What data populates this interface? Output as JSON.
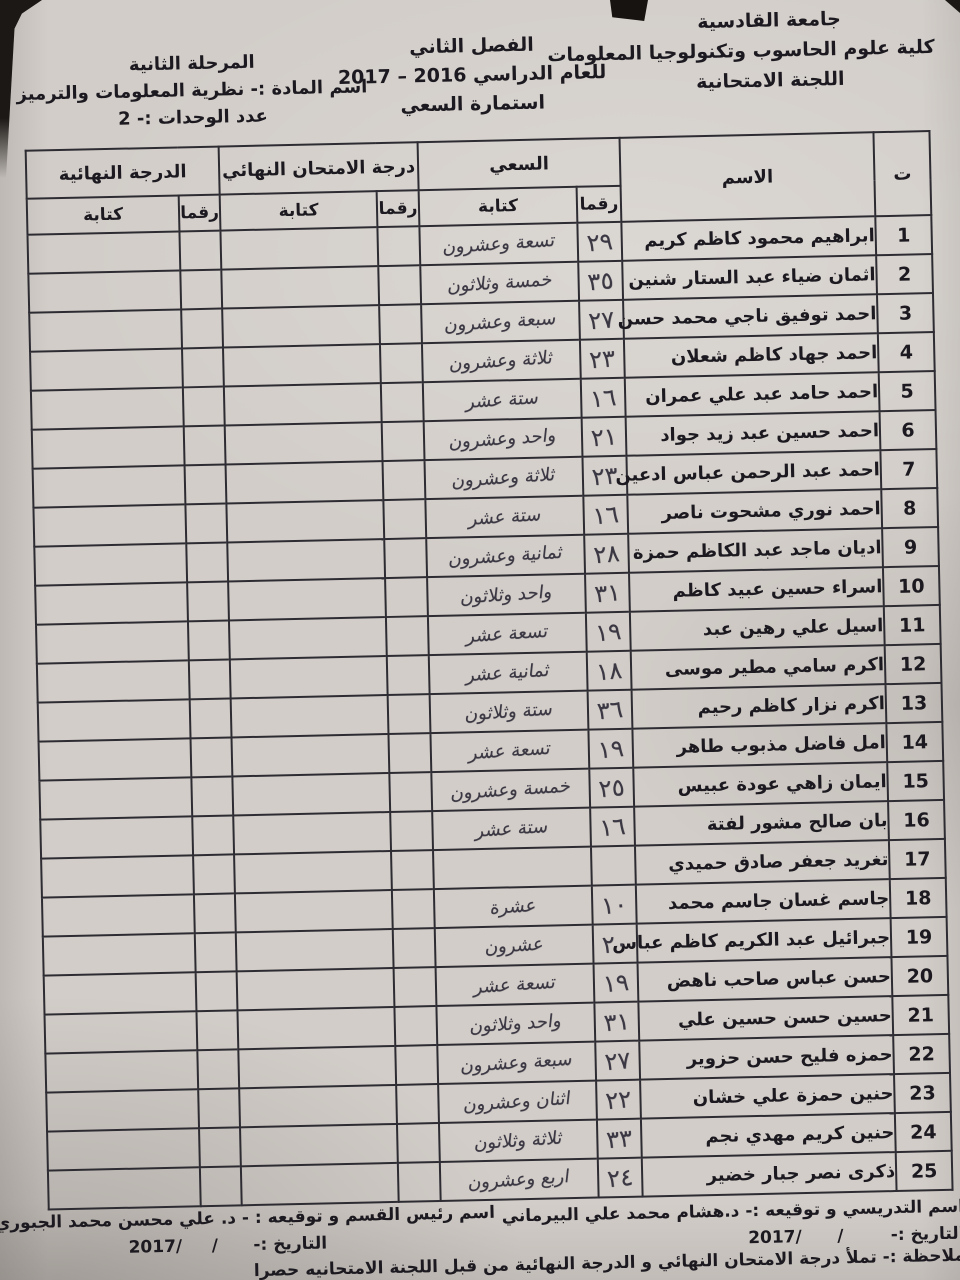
{
  "header": {
    "university": "جامعة القادسية",
    "college": "كلية علوم الحاسوب وتكنولوجيا المعلومات",
    "committee": "اللجنة الامتحانية",
    "semester": "الفصل الثاني",
    "academic_year": "للعام الدراسي 2016 – 2017",
    "form_title": "استمارة السعي",
    "stage": "المرحلة الثانية",
    "subject": "اسم المادة :- نظرية المعلومات والترميز",
    "units": "عدد الوحدات :- 2"
  },
  "table": {
    "headers": {
      "index": "ت",
      "name": "الاسم",
      "saai": "السعي",
      "final_exam": "درجة الامتحان النهائي",
      "final_grade": "الدرجة النهائية",
      "numeric": "رقما",
      "written": "كتابة"
    },
    "rows": [
      {
        "no": "1",
        "name": "ابراهيم محمود كاظم كريم",
        "saai_num": "٢٩",
        "saai_text": "تسعة وعشرون"
      },
      {
        "no": "2",
        "name": "اثمان ضياء عبد الستار شنين",
        "saai_num": "٣٥",
        "saai_text": "خمسة وثلاثون"
      },
      {
        "no": "3",
        "name": "احمد توفيق ناجي محمد حسن",
        "saai_num": "٢٧",
        "saai_text": "سبعة وعشرون"
      },
      {
        "no": "4",
        "name": "احمد جهاد كاظم شعلان",
        "saai_num": "٢٣",
        "saai_text": "ثلاثة وعشرون"
      },
      {
        "no": "5",
        "name": "احمد حامد عبد علي عمران",
        "saai_num": "١٦",
        "saai_text": "ستة عشر"
      },
      {
        "no": "6",
        "name": "احمد حسين عبد زيد جواد",
        "saai_num": "٢١",
        "saai_text": "واحد وعشرون"
      },
      {
        "no": "7",
        "name": "احمد عبد الرحمن عباس ادعين",
        "saai_num": "٢٣",
        "saai_text": "ثلاثة وعشرون"
      },
      {
        "no": "8",
        "name": "احمد نوري مشحوت ناصر",
        "saai_num": "١٦",
        "saai_text": "ستة عشر"
      },
      {
        "no": "9",
        "name": "اديان ماجد عبد الكاظم حمزة",
        "saai_num": "٢٨",
        "saai_text": "ثمانية وعشرون"
      },
      {
        "no": "10",
        "name": "اسراء حسين عبيد كاظم",
        "saai_num": "٣١",
        "saai_text": "واحد وثلاثون"
      },
      {
        "no": "11",
        "name": "اسيل علي رهين عبد",
        "saai_num": "١٩",
        "saai_text": "تسعة عشر"
      },
      {
        "no": "12",
        "name": "اكرم سامي مطير موسى",
        "saai_num": "١٨",
        "saai_text": "ثمانية عشر"
      },
      {
        "no": "13",
        "name": "اكرم نزار كاظم رحيم",
        "saai_num": "٣٦",
        "saai_text": "ستة وثلاثون"
      },
      {
        "no": "14",
        "name": "امل فاضل مذبوب طاهر",
        "saai_num": "١٩",
        "saai_text": "تسعة عشر"
      },
      {
        "no": "15",
        "name": "ايمان زاهي عودة عبيس",
        "saai_num": "٢٥",
        "saai_text": "خمسة وعشرون"
      },
      {
        "no": "16",
        "name": "بان صالح مشور لفتة",
        "saai_num": "١٦",
        "saai_text": "ستة عشر"
      },
      {
        "no": "17",
        "name": "تغريد جعفر صادق حميدي",
        "saai_num": "",
        "saai_text": ""
      },
      {
        "no": "18",
        "name": "جاسم غسان جاسم محمد",
        "saai_num": "١٠",
        "saai_text": "عشرة"
      },
      {
        "no": "19",
        "name": "جبرائيل عبد الكريم كاظم عباس",
        "saai_num": "٢٠",
        "saai_text": "عشرون"
      },
      {
        "no": "20",
        "name": "حسن عباس صاحب ناهض",
        "saai_num": "١٩",
        "saai_text": "تسعة عشر"
      },
      {
        "no": "21",
        "name": "حسين حسن حسين علي",
        "saai_num": "٣١",
        "saai_text": "واحد وثلاثون"
      },
      {
        "no": "22",
        "name": "حمزه فليح حسن حزوير",
        "saai_num": "٢٧",
        "saai_text": "سبعة وعشرون"
      },
      {
        "no": "23",
        "name": "حنين حمزة علي خشان",
        "saai_num": "٢٢",
        "saai_text": "اثنان وعشرون"
      },
      {
        "no": "24",
        "name": "حنين كريم مهدي نجم",
        "saai_num": "٣٣",
        "saai_text": "ثلاثة وثلاثون"
      },
      {
        "no": "25",
        "name": "ذكرى نصر جبار خضير",
        "saai_num": "٢٤",
        "saai_text": "اربع وعشرون"
      }
    ]
  },
  "footer": {
    "instructor_line": "اسم التدريسي و توقيعه :- د.هشام محمد علي البيرماني",
    "instructor_date": "التاريخ :-        /      /2017",
    "note": "ملاحظة :- تملأ درجة الامتحان النهائي و الدرجة النهائية من قبل اللجنة الامتحانيه حصرا",
    "head_line": "اسم رئيس القسم و توقيعه : - د. علي محسن محمد الجبوري",
    "head_date": "التاريخ :-      /     /2017"
  }
}
